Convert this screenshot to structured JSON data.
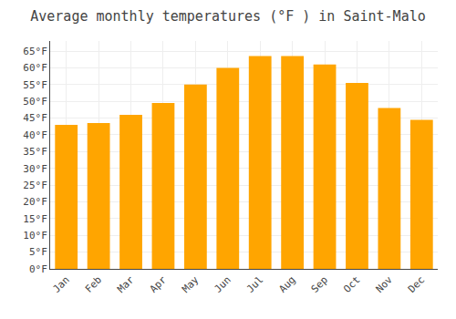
{
  "chart_data": {
    "type": "bar",
    "title": "Average monthly temperatures (°F ) in Saint-Malo",
    "categories": [
      "Jan",
      "Feb",
      "Mar",
      "Apr",
      "May",
      "Jun",
      "Jul",
      "Aug",
      "Sep",
      "Oct",
      "Nov",
      "Dec"
    ],
    "values": [
      43,
      43.5,
      46,
      49.5,
      55,
      60,
      63.5,
      63.5,
      61,
      55.5,
      48,
      44.5
    ],
    "color": "#FFA500",
    "ylim": [
      0,
      68
    ],
    "yticks": [
      {
        "value": 0,
        "label": "0°F"
      },
      {
        "value": 5,
        "label": "5°F"
      },
      {
        "value": 10,
        "label": "10°F"
      },
      {
        "value": 15,
        "label": "15°F"
      },
      {
        "value": 20,
        "label": "20°F"
      },
      {
        "value": 25,
        "label": "25°F"
      },
      {
        "value": 30,
        "label": "30°F"
      },
      {
        "value": 35,
        "label": "35°F"
      },
      {
        "value": 40,
        "label": "40°F"
      },
      {
        "value": 45,
        "label": "45°F"
      },
      {
        "value": 50,
        "label": "50°F"
      },
      {
        "value": 55,
        "label": "55°F"
      },
      {
        "value": 60,
        "label": "60°F"
      },
      {
        "value": 65,
        "label": "65°F"
      }
    ],
    "grid": true
  }
}
